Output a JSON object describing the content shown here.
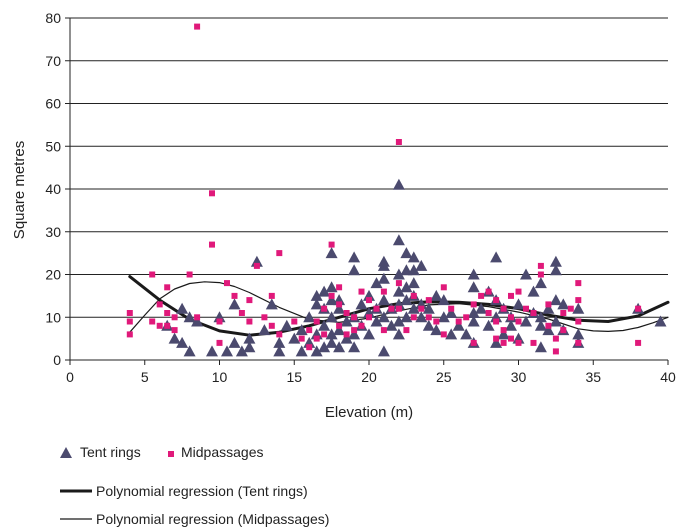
{
  "chart_data": {
    "type": "scatter",
    "title": "",
    "xlabel": "Elevation (m)",
    "ylabel": "Square metres",
    "xlim": [
      0,
      40
    ],
    "ylim": [
      0,
      80
    ],
    "x_ticks": [
      "0",
      "5",
      "10",
      "15",
      "20",
      "25",
      "30",
      "35",
      "40"
    ],
    "y_ticks": [
      "0",
      "10",
      "20",
      "30",
      "40",
      "50",
      "60",
      "70",
      "80"
    ],
    "grid": "horizontal",
    "legend_position": "bottom-left",
    "series": [
      {
        "name": "Tent rings",
        "marker": "triangle",
        "color": "#4b4a6e",
        "points": [
          [
            6.5,
            8
          ],
          [
            7,
            5
          ],
          [
            7.5,
            4
          ],
          [
            7.5,
            12
          ],
          [
            8,
            2
          ],
          [
            8,
            10
          ],
          [
            8.5,
            9
          ],
          [
            9.5,
            2
          ],
          [
            10,
            10
          ],
          [
            10.5,
            2
          ],
          [
            11,
            13
          ],
          [
            11,
            4
          ],
          [
            11.5,
            2
          ],
          [
            12,
            5
          ],
          [
            12,
            3
          ],
          [
            12.5,
            23
          ],
          [
            13,
            7
          ],
          [
            13.5,
            13
          ],
          [
            14,
            4
          ],
          [
            14,
            2
          ],
          [
            14.5,
            8
          ],
          [
            15,
            5
          ],
          [
            15.5,
            2
          ],
          [
            15.5,
            7
          ],
          [
            16,
            10
          ],
          [
            16,
            4
          ],
          [
            16.5,
            2
          ],
          [
            16.5,
            6
          ],
          [
            16.5,
            13
          ],
          [
            16.5,
            15
          ],
          [
            17,
            3
          ],
          [
            17,
            8
          ],
          [
            17,
            12
          ],
          [
            17,
            16
          ],
          [
            17.5,
            4
          ],
          [
            17.5,
            6
          ],
          [
            17.5,
            10
          ],
          [
            17.5,
            14
          ],
          [
            17.5,
            17
          ],
          [
            17.5,
            25
          ],
          [
            18,
            3
          ],
          [
            18,
            7
          ],
          [
            18,
            12
          ],
          [
            18,
            14
          ],
          [
            18.5,
            5
          ],
          [
            18.5,
            9
          ],
          [
            19,
            3
          ],
          [
            19,
            6
          ],
          [
            19,
            10
          ],
          [
            19,
            21
          ],
          [
            19,
            24
          ],
          [
            19.5,
            8
          ],
          [
            19.5,
            13
          ],
          [
            20,
            6
          ],
          [
            20,
            11
          ],
          [
            20,
            15
          ],
          [
            20.5,
            9
          ],
          [
            20.5,
            12
          ],
          [
            20.5,
            18
          ],
          [
            21,
            2
          ],
          [
            21,
            10
          ],
          [
            21,
            14
          ],
          [
            21,
            19
          ],
          [
            21,
            22
          ],
          [
            21,
            23
          ],
          [
            21.5,
            8
          ],
          [
            21.5,
            12
          ],
          [
            22,
            6
          ],
          [
            22,
            9
          ],
          [
            22,
            13
          ],
          [
            22,
            16
          ],
          [
            22,
            20
          ],
          [
            22,
            28
          ],
          [
            22,
            41
          ],
          [
            22.5,
            10
          ],
          [
            22.5,
            14
          ],
          [
            22.5,
            17
          ],
          [
            22.5,
            21
          ],
          [
            22.5,
            25
          ],
          [
            23,
            12
          ],
          [
            23,
            15
          ],
          [
            23,
            18
          ],
          [
            23,
            21
          ],
          [
            23,
            24
          ],
          [
            23.5,
            10
          ],
          [
            23.5,
            13
          ],
          [
            23.5,
            22
          ],
          [
            24,
            8
          ],
          [
            24,
            12
          ],
          [
            24.5,
            7
          ],
          [
            24.5,
            15
          ],
          [
            25,
            10
          ],
          [
            25,
            14
          ],
          [
            25.5,
            6
          ],
          [
            25.5,
            11
          ],
          [
            26,
            8
          ],
          [
            26.5,
            6
          ],
          [
            27,
            4
          ],
          [
            27,
            9
          ],
          [
            27,
            11
          ],
          [
            27,
            17
          ],
          [
            27,
            20
          ],
          [
            27.5,
            12
          ],
          [
            28,
            8
          ],
          [
            28,
            16
          ],
          [
            28.5,
            4
          ],
          [
            28.5,
            10
          ],
          [
            28.5,
            14
          ],
          [
            28.5,
            24
          ],
          [
            29,
            6
          ],
          [
            29,
            12
          ],
          [
            29.5,
            8
          ],
          [
            29.5,
            10
          ],
          [
            30,
            5
          ],
          [
            30,
            13
          ],
          [
            30.5,
            9
          ],
          [
            30.5,
            20
          ],
          [
            31,
            11
          ],
          [
            31,
            16
          ],
          [
            31.5,
            3
          ],
          [
            31.5,
            8
          ],
          [
            31.5,
            10
          ],
          [
            31.5,
            18
          ],
          [
            32,
            7
          ],
          [
            32,
            12
          ],
          [
            32.5,
            9
          ],
          [
            32.5,
            14
          ],
          [
            32.5,
            21
          ],
          [
            32.5,
            23
          ],
          [
            33,
            7
          ],
          [
            33,
            13
          ],
          [
            34,
            4
          ],
          [
            34,
            6
          ],
          [
            34,
            12
          ],
          [
            38,
            12
          ],
          [
            39.5,
            9
          ]
        ]
      },
      {
        "name": "Midpassages",
        "marker": "square",
        "color": "#e0197a",
        "points": [
          [
            4,
            6
          ],
          [
            4,
            9
          ],
          [
            4,
            11
          ],
          [
            5.5,
            9
          ],
          [
            5.5,
            20
          ],
          [
            6,
            8
          ],
          [
            6,
            13
          ],
          [
            6.5,
            8
          ],
          [
            6.5,
            11
          ],
          [
            6.5,
            17
          ],
          [
            7,
            7
          ],
          [
            7,
            10
          ],
          [
            8,
            20
          ],
          [
            8.5,
            78
          ],
          [
            8.5,
            10
          ],
          [
            9.5,
            27
          ],
          [
            9.5,
            39
          ],
          [
            10,
            4
          ],
          [
            10,
            9
          ],
          [
            10.5,
            18
          ],
          [
            11,
            15
          ],
          [
            11.5,
            11
          ],
          [
            12,
            14
          ],
          [
            12,
            9
          ],
          [
            12.5,
            22
          ],
          [
            13,
            10
          ],
          [
            13.5,
            15
          ],
          [
            13.5,
            8
          ],
          [
            14,
            25
          ],
          [
            14,
            6
          ],
          [
            15,
            9
          ],
          [
            15.5,
            5
          ],
          [
            16,
            3
          ],
          [
            16,
            7
          ],
          [
            16.5,
            5
          ],
          [
            16.5,
            9
          ],
          [
            17,
            6
          ],
          [
            17,
            12
          ],
          [
            17.5,
            27
          ],
          [
            17.5,
            15
          ],
          [
            18,
            8
          ],
          [
            18,
            17
          ],
          [
            18,
            13
          ],
          [
            18.5,
            6
          ],
          [
            18.5,
            11
          ],
          [
            19,
            7
          ],
          [
            19,
            10
          ],
          [
            19.5,
            16
          ],
          [
            19.5,
            8
          ],
          [
            20,
            10
          ],
          [
            20,
            14
          ],
          [
            20.5,
            12
          ],
          [
            21,
            7
          ],
          [
            21,
            16
          ],
          [
            21.5,
            12
          ],
          [
            22,
            51
          ],
          [
            22,
            12
          ],
          [
            22,
            18
          ],
          [
            22.5,
            7
          ],
          [
            23,
            10
          ],
          [
            23,
            15
          ],
          [
            23.5,
            12
          ],
          [
            24,
            10
          ],
          [
            24,
            14
          ],
          [
            24.5,
            9
          ],
          [
            25,
            6
          ],
          [
            25,
            17
          ],
          [
            25.5,
            12
          ],
          [
            26,
            9
          ],
          [
            26.5,
            10
          ],
          [
            27,
            4
          ],
          [
            27,
            13
          ],
          [
            27.5,
            15
          ],
          [
            28,
            11
          ],
          [
            28,
            16
          ],
          [
            28.5,
            5
          ],
          [
            28.5,
            9
          ],
          [
            28.5,
            14
          ],
          [
            29,
            7
          ],
          [
            29,
            12
          ],
          [
            29,
            4
          ],
          [
            29.5,
            5
          ],
          [
            29.5,
            10
          ],
          [
            29.5,
            15
          ],
          [
            30,
            4
          ],
          [
            30,
            9
          ],
          [
            30,
            16
          ],
          [
            30.5,
            12
          ],
          [
            31,
            4
          ],
          [
            31,
            11
          ],
          [
            31.5,
            20
          ],
          [
            31.5,
            22
          ],
          [
            32,
            8
          ],
          [
            32,
            13
          ],
          [
            32.5,
            5
          ],
          [
            32.5,
            2
          ],
          [
            33,
            7
          ],
          [
            33,
            11
          ],
          [
            33.5,
            12
          ],
          [
            34,
            4
          ],
          [
            34,
            9
          ],
          [
            34,
            14
          ],
          [
            34,
            18
          ],
          [
            38,
            4
          ],
          [
            38,
            12
          ]
        ]
      }
    ],
    "trend_lines": [
      {
        "name": "Polynomial regression (Tent rings)",
        "style": "thick",
        "color": "#1a1a1a",
        "points": [
          [
            4,
            19.5
          ],
          [
            6,
            14
          ],
          [
            8,
            9.5
          ],
          [
            10,
            6.8
          ],
          [
            12,
            5.8
          ],
          [
            14,
            6.5
          ],
          [
            16,
            8
          ],
          [
            18,
            10
          ],
          [
            20,
            12
          ],
          [
            22,
            13.2
          ],
          [
            24,
            13.6
          ],
          [
            26,
            13.5
          ],
          [
            28,
            13
          ],
          [
            30,
            12
          ],
          [
            32,
            10.5
          ],
          [
            34,
            9.3
          ],
          [
            36,
            9
          ],
          [
            38,
            10.3
          ],
          [
            40,
            13.5
          ]
        ]
      },
      {
        "name": "Polynomial regression (Midpassages)",
        "style": "thin",
        "color": "#1a1a1a",
        "points": [
          [
            4,
            6.5
          ],
          [
            5,
            10.5
          ],
          [
            6,
            14.3
          ],
          [
            7,
            16.6
          ],
          [
            8,
            17.9
          ],
          [
            9,
            18.3
          ],
          [
            10,
            18.1
          ],
          [
            11,
            17.2
          ],
          [
            12,
            15.8
          ],
          [
            14,
            12.3
          ],
          [
            16,
            9.5
          ],
          [
            18,
            8.8
          ],
          [
            20,
            9.8
          ],
          [
            22,
            11.5
          ],
          [
            24,
            12.9
          ],
          [
            26,
            13.2
          ],
          [
            28,
            12.5
          ],
          [
            30,
            11.2
          ],
          [
            32,
            9.6
          ],
          [
            34,
            7.3
          ],
          [
            35,
            6.8
          ],
          [
            36,
            6.7
          ],
          [
            37,
            6.9
          ],
          [
            38,
            7.6
          ],
          [
            39,
            8.7
          ],
          [
            40,
            10
          ]
        ]
      }
    ]
  }
}
